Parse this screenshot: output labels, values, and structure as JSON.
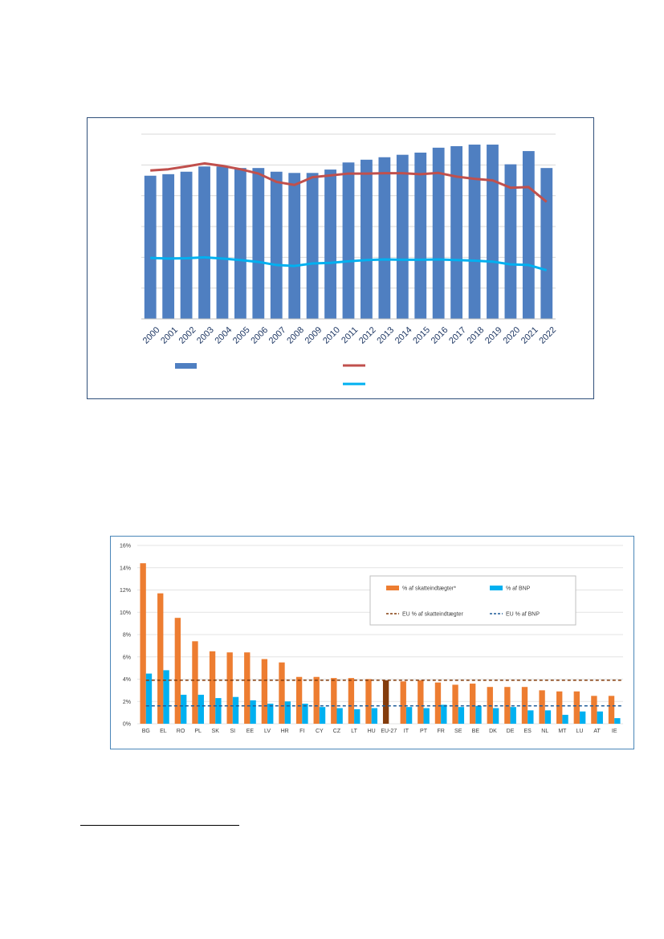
{
  "chart_data": [
    {
      "type": "bar",
      "title": "",
      "xlabel": "",
      "ylabel": "",
      "categories": [
        "2000",
        "2001",
        "2002",
        "2003",
        "2004",
        "2005",
        "2006",
        "2007",
        "2008",
        "2009",
        "2010",
        "2011",
        "2012",
        "2013",
        "2014",
        "2015",
        "2016",
        "2017",
        "2018",
        "2019",
        "2020",
        "2021",
        "2022"
      ],
      "ylim": [
        0,
        6
      ],
      "grid": true,
      "legend": "bottom",
      "bar_color": "#4f7fc1",
      "series": [
        {
          "kind": "bar",
          "color": "#4f7fc1",
          "values": [
            4.65,
            4.7,
            4.78,
            4.95,
            4.95,
            4.9,
            4.9,
            4.78,
            4.74,
            4.74,
            4.85,
            5.08,
            5.17,
            5.25,
            5.33,
            5.4,
            5.56,
            5.61,
            5.66,
            5.66,
            5.02,
            5.45,
            4.9
          ]
        },
        {
          "kind": "line",
          "color": "#c0504d",
          "values": [
            4.82,
            4.86,
            4.95,
            5.05,
            4.97,
            4.86,
            4.72,
            4.45,
            4.35,
            4.6,
            4.66,
            4.72,
            4.72,
            4.73,
            4.73,
            4.7,
            4.74,
            4.62,
            4.55,
            4.5,
            4.26,
            4.28,
            3.8
          ]
        },
        {
          "kind": "line",
          "color": "#00b0f0",
          "values": [
            1.98,
            1.96,
            1.97,
            2.0,
            1.96,
            1.91,
            1.85,
            1.75,
            1.72,
            1.8,
            1.82,
            1.87,
            1.91,
            1.93,
            1.92,
            1.92,
            1.93,
            1.91,
            1.89,
            1.86,
            1.77,
            1.75,
            1.58
          ]
        }
      ]
    },
    {
      "type": "bar",
      "title": "",
      "xlabel": "",
      "ylabel": "",
      "categories": [
        "BG",
        "EL",
        "RO",
        "PL",
        "SK",
        "SI",
        "EE",
        "LV",
        "HR",
        "FI",
        "CY",
        "CZ",
        "LT",
        "HU",
        "EU-27",
        "IT",
        "PT",
        "FR",
        "SE",
        "BE",
        "DK",
        "DE",
        "ES",
        "NL",
        "MT",
        "LU",
        "AT",
        "IE"
      ],
      "yticks": [
        "0%",
        "2%",
        "4%",
        "6%",
        "8%",
        "10%",
        "12%",
        "14%",
        "16%"
      ],
      "ylim": [
        0,
        16
      ],
      "grid": true,
      "legend": "top-right",
      "series": [
        {
          "name": "% af skatteindtægter*",
          "kind": "bar",
          "color": "#ed7d31",
          "highlight_color": "#843c0c",
          "values": [
            14.4,
            11.7,
            9.5,
            7.4,
            6.5,
            6.4,
            6.4,
            5.8,
            5.5,
            4.2,
            4.2,
            4.1,
            4.1,
            4.0,
            3.9,
            3.8,
            3.9,
            3.7,
            3.5,
            3.6,
            3.3,
            3.3,
            3.3,
            3.0,
            2.9,
            2.9,
            2.5,
            2.5
          ]
        },
        {
          "name": "% af BNP",
          "kind": "bar",
          "color": "#00b0f0",
          "values": [
            4.5,
            4.8,
            2.6,
            2.6,
            2.3,
            2.4,
            2.1,
            1.8,
            2.0,
            1.8,
            1.5,
            1.4,
            1.3,
            1.4,
            1.6,
            1.5,
            1.4,
            1.7,
            1.5,
            1.6,
            1.4,
            1.5,
            1.2,
            1.2,
            0.8,
            1.1,
            1.1,
            0.5
          ]
        },
        {
          "name": "EU % af skatteindtægter",
          "kind": "dashed-line",
          "color": "#843c0c",
          "value": 3.9
        },
        {
          "name": "EU % af BNP",
          "kind": "dashed-line",
          "color": "#1f5c99",
          "value": 1.6
        }
      ]
    }
  ]
}
